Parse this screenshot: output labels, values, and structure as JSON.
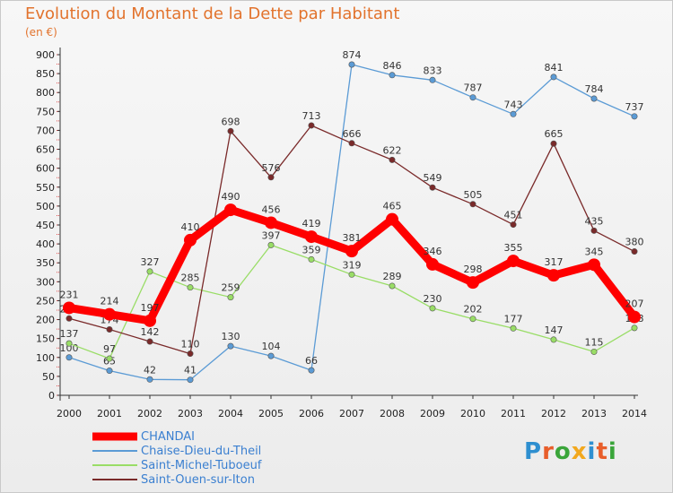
{
  "title": "Evolution du Montant de la Dette par Habitant",
  "subtitle": "(en €)",
  "brand": "Proxiti",
  "chart_data": {
    "type": "line",
    "x": [
      "2000",
      "2001",
      "2002",
      "2003",
      "2004",
      "2005",
      "2006",
      "2007",
      "2008",
      "2009",
      "2010",
      "2011",
      "2012",
      "2013",
      "2014"
    ],
    "ylim": [
      0,
      900
    ],
    "yticks": [
      0,
      50,
      100,
      150,
      200,
      250,
      300,
      350,
      400,
      450,
      500,
      550,
      600,
      650,
      700,
      750,
      800,
      850,
      900
    ],
    "grid": false,
    "legend_position": "bottom-left",
    "series": [
      {
        "name": "CHANDAI",
        "color": "#ff0000",
        "values": [
          231,
          214,
          197,
          410,
          490,
          456,
          419,
          381,
          465,
          346,
          298,
          355,
          317,
          345,
          207
        ]
      },
      {
        "name": "Chaise-Dieu-du-Theil",
        "color": "#5b9bd5",
        "values": [
          100,
          65,
          42,
          41,
          130,
          104,
          66,
          874,
          846,
          833,
          787,
          743,
          841,
          784,
          737
        ]
      },
      {
        "name": "Saint-Michel-Tuboeuf",
        "color": "#99dd66",
        "values": [
          137,
          97,
          327,
          285,
          259,
          397,
          359,
          319,
          289,
          230,
          202,
          177,
          147,
          115,
          178
        ]
      },
      {
        "name": "Saint-Ouen-sur-Iton",
        "color": "#7a2a2a",
        "values": [
          203,
          174,
          142,
          110,
          698,
          576,
          713,
          666,
          622,
          549,
          505,
          451,
          665,
          435,
          380
        ]
      }
    ]
  }
}
